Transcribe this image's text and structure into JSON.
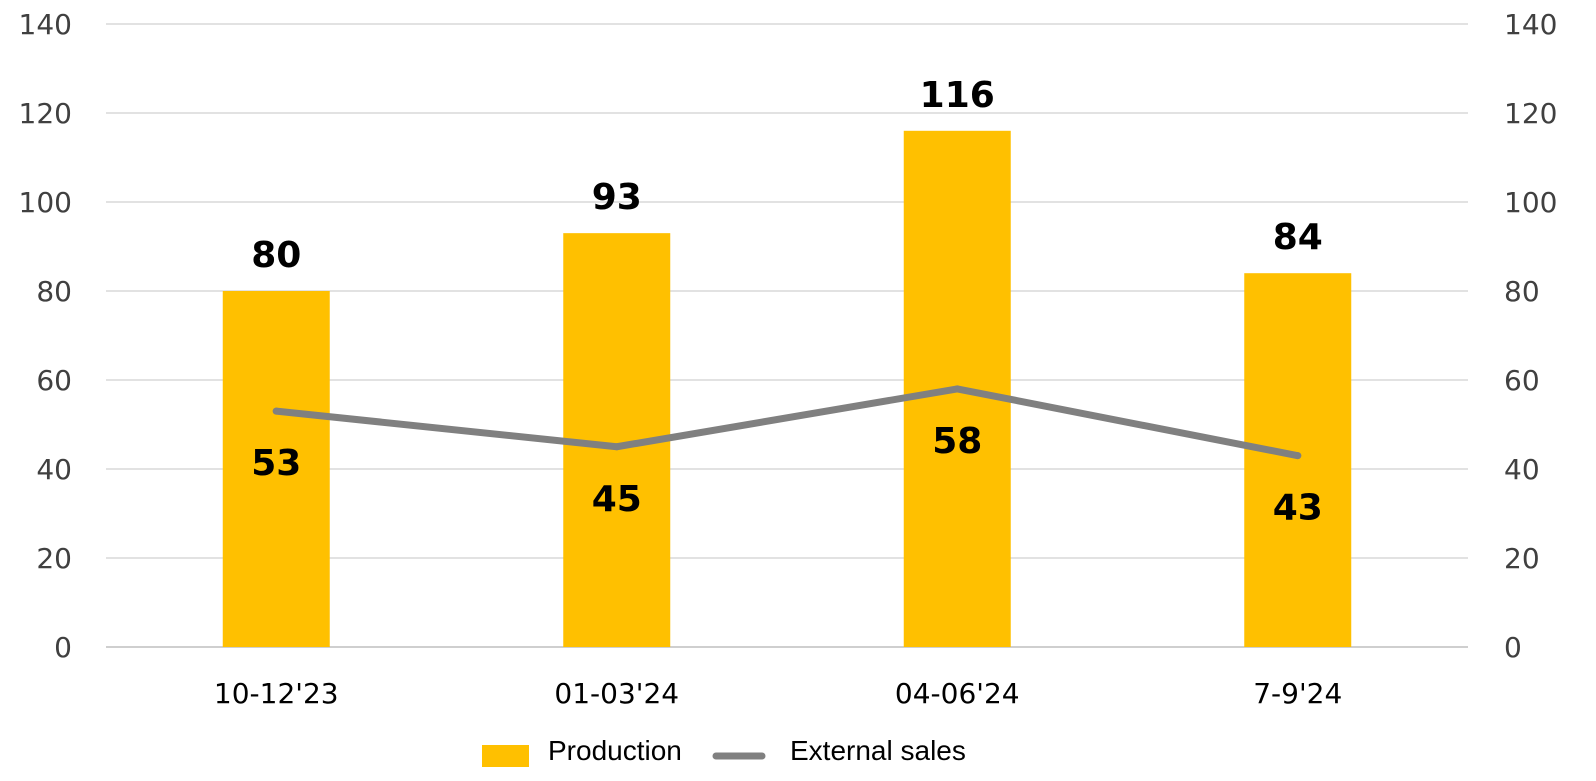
{
  "chart_data": {
    "type": "bar",
    "categories": [
      "10-12'23",
      "01-03'24",
      "04-06'24",
      "7-9'24"
    ],
    "series": [
      {
        "name": "Production",
        "kind": "bar",
        "values": [
          80,
          93,
          116,
          84
        ],
        "labels": [
          "80",
          "93",
          "116",
          "84"
        ],
        "color": "#FFC000"
      },
      {
        "name": "External sales",
        "kind": "line",
        "values": [
          53,
          45,
          58,
          43
        ],
        "labels": [
          "53",
          "45",
          "58",
          "43"
        ],
        "color": "#808080"
      }
    ],
    "ylim": [
      0,
      140
    ],
    "y_ticks": [
      "0",
      "20",
      "40",
      "60",
      "80",
      "100",
      "120",
      "140"
    ],
    "y2lim": [
      0,
      140
    ],
    "y2_ticks": [
      "0",
      "20",
      "40",
      "60",
      "80",
      "100",
      "120",
      "140"
    ],
    "grid": true,
    "legend": "bottom",
    "title": "",
    "xlabel": "",
    "ylabel": ""
  }
}
